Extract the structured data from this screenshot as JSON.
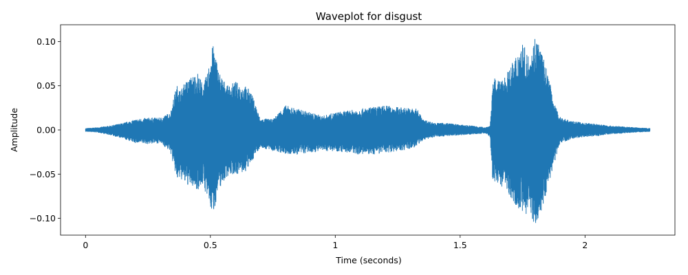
{
  "chart_data": {
    "type": "line",
    "title": "Waveplot for disgust",
    "xlabel": "Time (seconds)",
    "ylabel": "Amplitude",
    "xlim": [
      -0.1,
      2.36
    ],
    "ylim": [
      -0.119,
      0.119
    ],
    "x_ticks": [
      0,
      0.5,
      1,
      1.5,
      2
    ],
    "x_tick_labels": [
      "0",
      "0.5",
      "1",
      "1.5",
      "2"
    ],
    "y_ticks": [
      -0.1,
      -0.05,
      0,
      0.05,
      0.1
    ],
    "y_tick_labels": [
      "−0.10",
      "−0.05",
      "0.00",
      "0.05",
      "0.10"
    ],
    "grid": false,
    "line_color": "#1f77b4",
    "duration": 2.26,
    "series": [
      {
        "envelope_time": [
          0.0,
          0.05,
          0.1,
          0.15,
          0.2,
          0.25,
          0.3,
          0.34,
          0.36,
          0.37,
          0.38,
          0.4,
          0.43,
          0.45,
          0.47,
          0.49,
          0.5,
          0.51,
          0.52,
          0.53,
          0.55,
          0.57,
          0.6,
          0.62,
          0.64,
          0.66,
          0.68,
          0.7,
          0.72,
          0.75,
          0.78,
          0.8,
          0.85,
          0.9,
          0.95,
          1.0,
          1.05,
          1.1,
          1.15,
          1.2,
          1.25,
          1.3,
          1.33,
          1.35,
          1.4,
          1.45,
          1.5,
          1.55,
          1.6,
          1.62,
          1.63,
          1.64,
          1.66,
          1.7,
          1.73,
          1.75,
          1.77,
          1.79,
          1.8,
          1.81,
          1.83,
          1.85,
          1.88,
          1.9,
          1.95,
          2.0,
          2.05,
          2.1,
          2.15,
          2.2,
          2.26
        ],
        "envelope_upper": [
          0.002,
          0.003,
          0.005,
          0.008,
          0.012,
          0.014,
          0.014,
          0.02,
          0.045,
          0.053,
          0.045,
          0.055,
          0.062,
          0.065,
          0.052,
          0.065,
          0.087,
          0.096,
          0.09,
          0.07,
          0.058,
          0.05,
          0.055,
          0.052,
          0.05,
          0.045,
          0.03,
          0.012,
          0.013,
          0.012,
          0.022,
          0.028,
          0.024,
          0.02,
          0.016,
          0.02,
          0.022,
          0.024,
          0.026,
          0.028,
          0.026,
          0.025,
          0.024,
          0.012,
          0.008,
          0.008,
          0.006,
          0.005,
          0.003,
          0.005,
          0.05,
          0.06,
          0.055,
          0.07,
          0.09,
          0.1,
          0.085,
          0.095,
          0.108,
          0.105,
          0.085,
          0.065,
          0.028,
          0.015,
          0.01,
          0.008,
          0.007,
          0.005,
          0.004,
          0.003,
          0.002
        ],
        "envelope_lower": [
          -0.002,
          -0.003,
          -0.006,
          -0.01,
          -0.015,
          -0.016,
          -0.015,
          -0.025,
          -0.05,
          -0.06,
          -0.055,
          -0.062,
          -0.065,
          -0.068,
          -0.062,
          -0.08,
          -0.09,
          -0.096,
          -0.085,
          -0.07,
          -0.06,
          -0.052,
          -0.05,
          -0.05,
          -0.048,
          -0.04,
          -0.028,
          -0.02,
          -0.022,
          -0.024,
          -0.026,
          -0.028,
          -0.028,
          -0.026,
          -0.024,
          -0.024,
          -0.026,
          -0.028,
          -0.028,
          -0.026,
          -0.024,
          -0.022,
          -0.018,
          -0.012,
          -0.008,
          -0.007,
          -0.006,
          -0.005,
          -0.004,
          -0.008,
          -0.06,
          -0.06,
          -0.062,
          -0.075,
          -0.088,
          -0.095,
          -0.095,
          -0.103,
          -0.108,
          -0.104,
          -0.09,
          -0.065,
          -0.035,
          -0.015,
          -0.01,
          -0.008,
          -0.007,
          -0.005,
          -0.004,
          -0.003,
          -0.002
        ]
      }
    ]
  }
}
